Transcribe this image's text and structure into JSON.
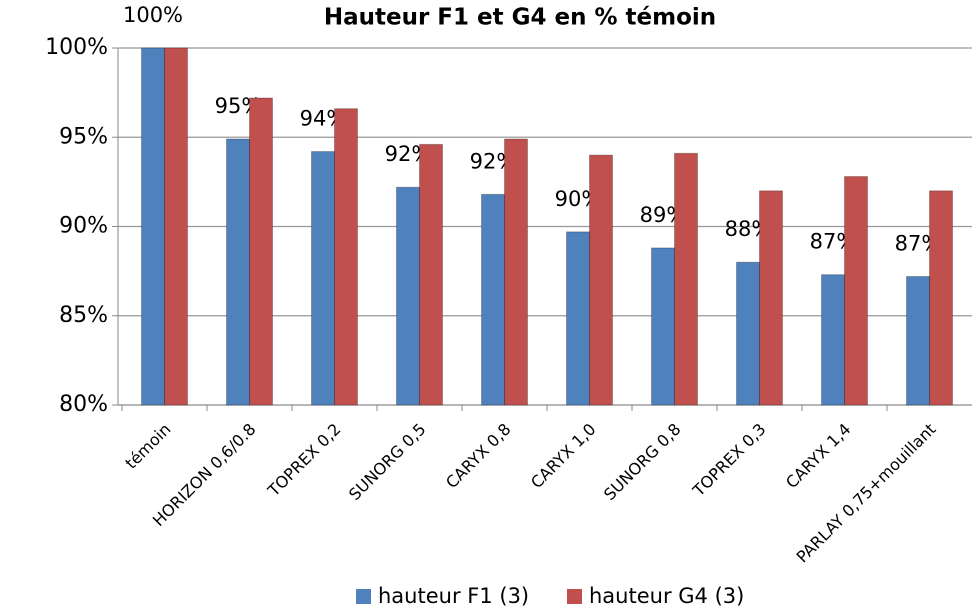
{
  "chart_data": {
    "type": "bar",
    "title": "Hauteur F1 et G4 en % témoin",
    "categories": [
      "témoin",
      "HORIZON 0,6/0.8",
      "TOPREX 0,2",
      "SUNORG 0,5",
      "CARYX 0,8",
      "CARYX 1,0",
      "SUNORG 0,8",
      "TOPREX 0,3",
      "CARYX 1,4",
      "PARLAY 0,75+mouillant"
    ],
    "series": [
      {
        "name": "hauteur F1 (3)",
        "color": "#4f81bd",
        "values": [
          100,
          94.9,
          94.2,
          92.2,
          91.8,
          89.7,
          88.8,
          88.0,
          87.3,
          87.2
        ],
        "value_labels": [
          "100%",
          "95%",
          "94%",
          "92%",
          "92%",
          "90%",
          "89%",
          "88%",
          "87%",
          "87%"
        ]
      },
      {
        "name": "hauteur G4 (3)",
        "color": "#c0504d",
        "values": [
          100,
          97.2,
          96.6,
          94.6,
          94.9,
          94.0,
          94.1,
          92.0,
          92.8,
          92.0
        ]
      }
    ],
    "ylim": [
      80,
      100
    ],
    "yticks": [
      {
        "value": 80,
        "label": "80%"
      },
      {
        "value": 85,
        "label": "85%"
      },
      {
        "value": 90,
        "label": "90%"
      },
      {
        "value": 95,
        "label": "95%"
      },
      {
        "value": 100,
        "label": "100%"
      }
    ],
    "grid": true
  }
}
